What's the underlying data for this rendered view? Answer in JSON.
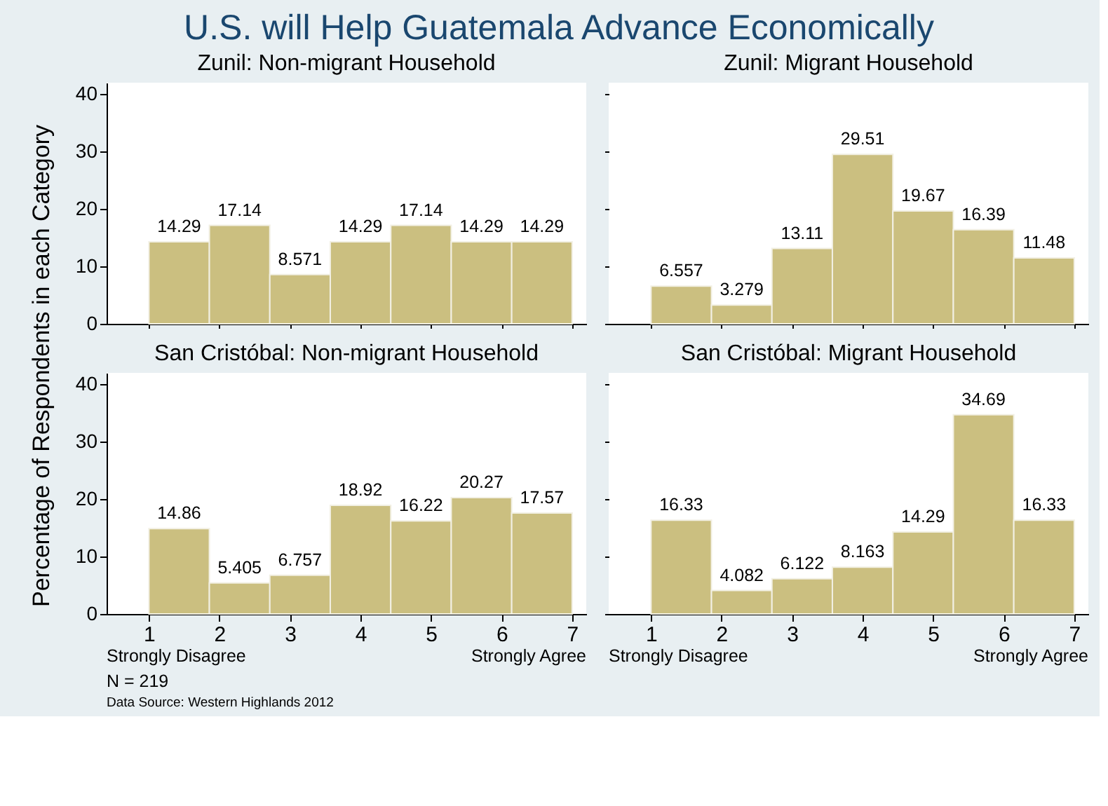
{
  "chart_data": [
    {
      "type": "histogram",
      "title": "U.S. will Help Guatemala Advance Economically",
      "subtitle": "Zunil: Non-migrant Household",
      "ylabel": "Percentage of Respondents in each Category",
      "bins": [
        1,
        1.857,
        2.714,
        3.571,
        4.429,
        5.286,
        6.143,
        7
      ],
      "values": [
        14.29,
        17.14,
        8.571,
        14.29,
        17.14,
        14.29,
        14.29
      ],
      "color": "#cbbf80",
      "xlim": [
        0.4,
        7.2
      ],
      "ylim": [
        0,
        42
      ],
      "yticks": [
        0,
        10,
        20,
        30,
        40
      ],
      "xticks": [
        1,
        2,
        3,
        4,
        5,
        6,
        7
      ],
      "data_labels": true,
      "tick_labels": "y",
      "grid": false
    },
    {
      "type": "histogram",
      "subtitle": "Zunil: Migrant Household",
      "bins": [
        1,
        1.857,
        2.714,
        3.571,
        4.429,
        5.286,
        6.143,
        7
      ],
      "values": [
        6.557,
        3.279,
        13.11,
        29.51,
        19.67,
        16.39,
        11.48
      ],
      "color": "#cbbf80",
      "xlim": [
        0.4,
        7.2
      ],
      "ylim": [
        0,
        42
      ],
      "yticks": [
        0,
        10,
        20,
        30,
        40
      ],
      "xticks": [
        1,
        2,
        3,
        4,
        5,
        6,
        7
      ],
      "data_labels": true,
      "tick_labels": false,
      "grid": false
    },
    {
      "type": "histogram",
      "subtitle": "San Cristóbal: Non-migrant Household",
      "bins": [
        1,
        1.857,
        2.714,
        3.571,
        4.429,
        5.286,
        6.143,
        7
      ],
      "values": [
        14.86,
        5.405,
        6.757,
        18.92,
        16.22,
        20.27,
        17.57
      ],
      "color": "#cbbf80",
      "xlim": [
        0.4,
        7.2
      ],
      "ylim": [
        0,
        42
      ],
      "yticks": [
        0,
        10,
        20,
        30,
        40
      ],
      "xticks": [
        1,
        2,
        3,
        4,
        5,
        6,
        7
      ],
      "data_labels": true,
      "grid": false,
      "annotations": [
        "Strongly Disagree",
        "Strongly Agree",
        "N = 219",
        "Data Source: Western Highlands 2012"
      ]
    },
    {
      "type": "histogram",
      "subtitle": "San Cristóbal: Migrant Household",
      "bins": [
        1,
        1.857,
        2.714,
        3.571,
        4.429,
        5.286,
        6.143,
        7
      ],
      "values": [
        16.33,
        4.082,
        6.122,
        8.163,
        14.29,
        34.69,
        16.33
      ],
      "color": "#cbbf80",
      "xlim": [
        0.4,
        7.2
      ],
      "ylim": [
        0,
        42
      ],
      "yticks": [
        0,
        10,
        20,
        30,
        40
      ],
      "xticks": [
        1,
        2,
        3,
        4,
        5,
        6,
        7
      ],
      "data_labels": true,
      "tick_labels": "x",
      "grid": false,
      "annotations": [
        "Strongly Disagree",
        "Strongly Agree"
      ]
    }
  ]
}
